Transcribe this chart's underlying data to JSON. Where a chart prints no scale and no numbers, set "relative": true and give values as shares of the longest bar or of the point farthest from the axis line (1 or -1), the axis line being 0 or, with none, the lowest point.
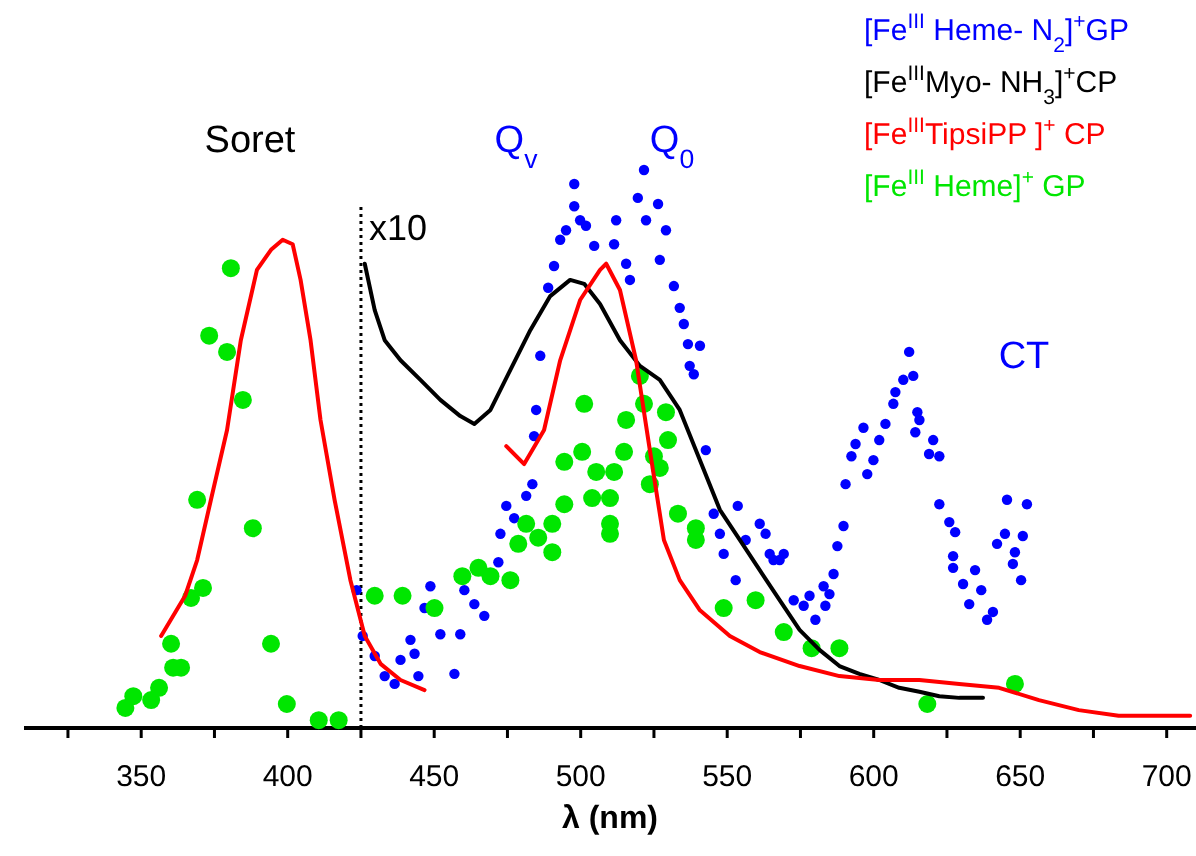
{
  "chart_data": {
    "type": "scatter",
    "xlabel": "λ (nm)",
    "relative": true,
    "marker": "circle",
    "legend": "top right",
    "grid": false,
    "xlim": [
      310,
      710
    ],
    "xticks": [
      {
        "value": 325,
        "label": null
      },
      350,
      {
        "value": 375,
        "label": null
      },
      400,
      {
        "value": 425,
        "label": null
      },
      450,
      {
        "value": 475,
        "label": null
      },
      500,
      {
        "value": 525,
        "label": null
      },
      550,
      {
        "value": 575,
        "label": null
      },
      600,
      {
        "value": 625,
        "label": null
      },
      650,
      {
        "value": 675,
        "label": null
      },
      700
    ],
    "annotations": [
      "Soret",
      "Q$_{v}$",
      "Q$_{0}$",
      "CT"
    ],
    "ref_lines": [
      {
        "axis": "x",
        "value": 425,
        "label": "x10",
        "line_style": "dotted",
        "color": "#000000"
      }
    ],
    "series": [
      {
        "name": "[Fe$^{III}$ Heme- N$_{2}$]$^{+}$GP",
        "color": "#0000ff",
        "x": [
          423.5,
          425.6,
          429.7,
          433.1,
          436.5,
          438.5,
          441.9,
          443.3,
          444.6,
          446.7,
          448.7,
          452.1,
          456.9,
          458.9,
          460.3,
          463.7,
          467.1,
          471.9,
          472.6,
          474.6,
          477.3,
          481.4,
          483.5,
          484.1,
          484.8,
          486.2,
          488.9,
          490.9,
          493.0,
          495.0,
          497.8,
          497.8,
          499.8,
          501.8,
          504.6,
          511.4,
          512.1,
          515.5,
          516.8,
          519.5,
          521.6,
          522.3,
          526.4,
          527.0,
          529.1,
          531.8,
          533.8,
          535.2,
          536.6,
          537.2,
          538.6,
          540.7,
          542.7,
          545.4,
          547.5,
          548.8,
          553.6,
          552.9,
          556.3,
          561.1,
          563.1,
          564.5,
          565.8,
          567.9,
          569.3,
          572.7,
          576.1,
          578.1,
          580.1,
          582.9,
          583.5,
          584.9,
          586.3,
          587.6,
          589.7,
          590.4,
          592.4,
          593.8,
          596.5,
          597.8,
          599.9,
          601.9,
          604.0,
          606.7,
          607.4,
          610.1,
          612.1,
          613.5,
          614.2,
          614.9,
          615.6,
          618.9,
          620.3,
          622.4,
          622.4,
          625.8,
          627.1,
          627.8,
          627.1,
          630.5,
          632.6,
          634.6,
          636.7,
          638.7,
          640.7,
          642.1,
          644.8,
          645.5,
          647.5,
          648.2,
          650.3,
          650.9,
          652.3
        ],
        "values": [
          0.247,
          0.165,
          0.129,
          0.093,
          0.079,
          0.122,
          0.158,
          0.133,
          0.093,
          0.215,
          0.254,
          0.168,
          0.097,
          0.168,
          0.247,
          0.222,
          0.201,
          0.297,
          0.348,
          0.398,
          0.376,
          0.416,
          0.437,
          0.523,
          0.57,
          0.667,
          0.789,
          0.828,
          0.875,
          0.892,
          0.975,
          0.935,
          0.91,
          0.9,
          0.864,
          0.867,
          0.91,
          0.832,
          0.803,
          0.95,
          1.0,
          0.91,
          0.939,
          0.839,
          0.892,
          0.792,
          0.753,
          0.724,
          0.688,
          0.649,
          0.634,
          0.685,
          0.498,
          0.384,
          0.348,
          0.312,
          0.398,
          0.265,
          0.337,
          0.366,
          0.348,
          0.312,
          0.301,
          0.301,
          0.312,
          0.229,
          0.219,
          0.237,
          0.194,
          0.254,
          0.219,
          0.24,
          0.276,
          0.326,
          0.362,
          0.437,
          0.487,
          0.509,
          0.538,
          0.455,
          0.48,
          0.516,
          0.545,
          0.581,
          0.602,
          0.624,
          0.674,
          0.631,
          0.53,
          0.566,
          0.552,
          0.491,
          0.516,
          0.487,
          0.401,
          0.369,
          0.308,
          0.351,
          0.287,
          0.258,
          0.222,
          0.283,
          0.247,
          0.194,
          0.208,
          0.33,
          0.348,
          0.409,
          0.294,
          0.315,
          0.265,
          0.344,
          0.401
        ]
      },
      {
        "name": "[Fe$^{III}$Myo- NH$_{3}$]$^{+}$CP",
        "type": "line",
        "color": "#000000",
        "line_style": "solid",
        "marker": "none",
        "x": [
          426.3,
          429.7,
          433.1,
          438.5,
          445.3,
          452.1,
          458.9,
          463.7,
          469.2,
          476.0,
          482.8,
          489.6,
          496.4,
          501.2,
          506.6,
          513.4,
          520.2,
          527.0,
          533.8,
          540.7,
          547.5,
          554.3,
          561.1,
          567.9,
          574.7,
          581.5,
          588.3,
          595.1,
          601.9,
          608.7,
          615.6,
          622.4,
          629.2,
          637.3
        ],
        "values": [
          0.832,
          0.749,
          0.695,
          0.659,
          0.624,
          0.588,
          0.559,
          0.545,
          0.57,
          0.642,
          0.713,
          0.774,
          0.803,
          0.796,
          0.76,
          0.695,
          0.649,
          0.624,
          0.57,
          0.48,
          0.391,
          0.337,
          0.283,
          0.229,
          0.176,
          0.14,
          0.111,
          0.097,
          0.086,
          0.072,
          0.065,
          0.057,
          0.054,
          0.054
        ]
      },
      {
        "name": "[Fe$^{III}$TipsiPP ]$^{+}$ CP",
        "type": "line",
        "color": "#ff0000",
        "line_style": "solid",
        "marker": "none",
        "x": [
          356.8,
          365.0,
          369.1,
          373.8,
          379.3,
          384.0,
          389.5,
          394.3,
          398.3,
          401.7,
          404.4,
          407.8,
          411.2,
          416.0,
          421.4,
          426.3,
          431.7,
          438.5,
          446.7,
          460,
          474.6,
          480.7,
          487.5,
          493.0,
          499.8,
          506.6,
          508.7,
          513.4,
          518.9,
          523.6,
          528.4,
          533.8,
          540.7,
          550.9,
          561.1,
          574.7,
          588.3,
          601.9,
          615.6,
          629.2,
          642.8,
          656.4,
          670.0,
          683.6,
          697.3,
          708
        ],
        "values": [
          0.165,
          0.237,
          0.301,
          0.409,
          0.534,
          0.695,
          0.821,
          0.857,
          0.875,
          0.867,
          0.803,
          0.695,
          0.552,
          0.409,
          0.265,
          0.165,
          0.115,
          0.086,
          0.068,
          null,
          0.505,
          0.473,
          0.534,
          0.659,
          0.767,
          0.821,
          0.832,
          0.785,
          0.659,
          0.498,
          0.337,
          0.265,
          0.211,
          0.165,
          0.136,
          0.111,
          0.093,
          0.086,
          0.086,
          0.079,
          0.072,
          0.05,
          0.032,
          0.022,
          0.022,
          0.022
        ]
      },
      {
        "name": "[Fe$^{III}$ Heme]$^{+}$ GP",
        "color": "#00e600",
        "x": [
          344.6,
          347.3,
          353.4,
          356.1,
          360.2,
          360.9,
          363.6,
          367.0,
          371.1,
          369.1,
          373.2,
          379.3,
          380.6,
          384.7,
          388.1,
          394.3,
          399.7,
          410.6,
          417.4,
          429.7,
          439.2,
          450.1,
          459.6,
          465.1,
          469.2,
          476.0,
          478.7,
          481.4,
          485.5,
          490.3,
          490.3,
          494.4,
          494.4,
          500.5,
          501.2,
          503.9,
          505.3,
          510.0,
          510.0,
          510.0,
          511.4,
          514.8,
          515.5,
          520.2,
          521.6,
          523.6,
          525.0,
          527.0,
          529.1,
          529.8,
          533.2,
          539.3,
          539.3,
          548.8,
          559.7,
          569.3,
          578.8,
          588.3,
          618.3,
          648.2
        ],
        "values": [
          0.036,
          0.057,
          0.05,
          0.072,
          0.151,
          0.108,
          0.108,
          0.233,
          0.251,
          0.409,
          0.703,
          0.674,
          0.824,
          0.588,
          0.358,
          0.151,
          0.043,
          0.014,
          0.014,
          0.237,
          0.237,
          0.215,
          0.272,
          0.287,
          0.272,
          0.265,
          0.33,
          0.366,
          0.341,
          0.366,
          0.315,
          0.401,
          0.477,
          0.495,
          0.581,
          0.412,
          0.459,
          0.412,
          0.366,
          0.348,
          0.459,
          0.495,
          0.552,
          0.631,
          0.581,
          0.437,
          0.487,
          0.466,
          0.566,
          0.516,
          0.384,
          0.358,
          0.337,
          0.215,
          0.229,
          0.172,
          0.143,
          0.143,
          0.043,
          0.079
        ]
      }
    ]
  }
}
